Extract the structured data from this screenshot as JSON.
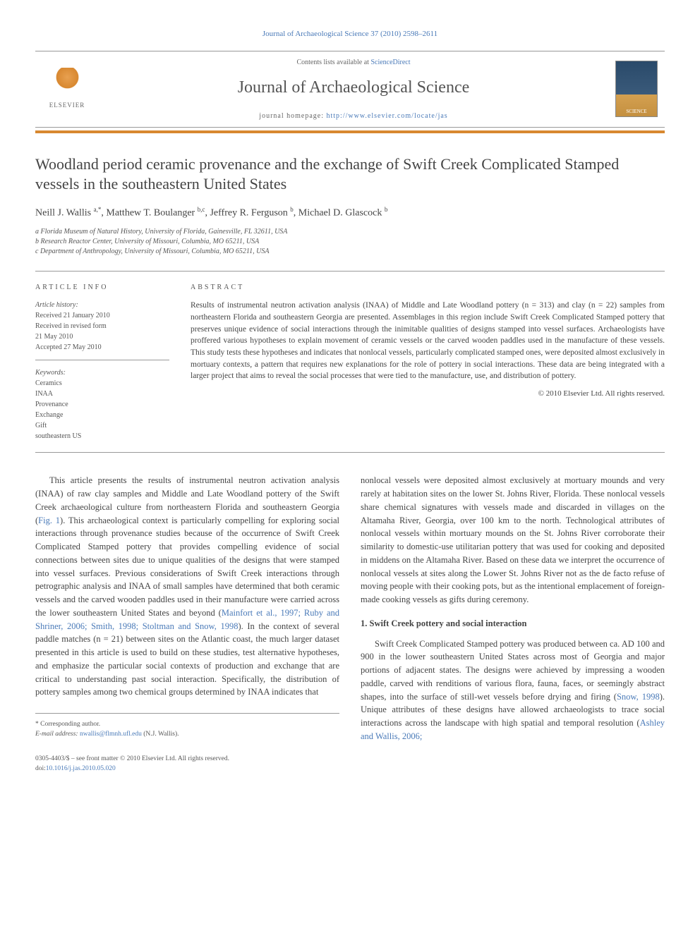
{
  "journal": {
    "citation": "Journal of Archaeological Science 37 (2010) 2598–2611",
    "contents_prefix": "Contents lists available at ",
    "contents_link": "ScienceDirect",
    "name": "Journal of Archaeological Science",
    "homepage_prefix": "journal homepage: ",
    "homepage_url": "http://www.elsevier.com/locate/jas",
    "publisher_logo_text": "ELSEVIER"
  },
  "article": {
    "title": "Woodland period ceramic provenance and the exchange of Swift Creek Complicated Stamped vessels in the southeastern United States",
    "authors_html": "Neill J. Wallis <sup>a,*</sup>, Matthew T. Boulanger <sup>b,c</sup>, Jeffrey R. Ferguson <sup>b</sup>, Michael D. Glascock <sup>b</sup>",
    "affiliations": [
      "a Florida Museum of Natural History, University of Florida, Gainesville, FL 32611, USA",
      "b Research Reactor Center, University of Missouri, Columbia, MO 65211, USA",
      "c Department of Anthropology, University of Missouri, Columbia, MO 65211, USA"
    ]
  },
  "info": {
    "heading": "ARTICLE INFO",
    "history_label": "Article history:",
    "received": "Received 21 January 2010",
    "revised": "Received in revised form",
    "revised_date": "21 May 2010",
    "accepted": "Accepted 27 May 2010",
    "keywords_label": "Keywords:",
    "keywords": [
      "Ceramics",
      "INAA",
      "Provenance",
      "Exchange",
      "Gift",
      "southeastern US"
    ]
  },
  "abstract": {
    "heading": "ABSTRACT",
    "text": "Results of instrumental neutron activation analysis (INAA) of Middle and Late Woodland pottery (n = 313) and clay (n = 22) samples from northeastern Florida and southeastern Georgia are presented. Assemblages in this region include Swift Creek Complicated Stamped pottery that preserves unique evidence of social interactions through the inimitable qualities of designs stamped into vessel surfaces. Archaeologists have proffered various hypotheses to explain movement of ceramic vessels or the carved wooden paddles used in the manufacture of these vessels. This study tests these hypotheses and indicates that nonlocal vessels, particularly complicated stamped ones, were deposited almost exclusively in mortuary contexts, a pattern that requires new explanations for the role of pottery in social interactions. These data are being integrated with a larger project that aims to reveal the social processes that were tied to the manufacture, use, and distribution of pottery.",
    "copyright": "© 2010 Elsevier Ltd. All rights reserved."
  },
  "body": {
    "col1_p1": "This article presents the results of instrumental neutron activation analysis (INAA) of raw clay samples and Middle and Late Woodland pottery of the Swift Creek archaeological culture from northeastern Florida and southeastern Georgia (Fig. 1). This archaeological context is particularly compelling for exploring social interactions through provenance studies because of the occurrence of Swift Creek Complicated Stamped pottery that provides compelling evidence of social connections between sites due to unique qualities of the designs that were stamped into vessel surfaces. Previous considerations of Swift Creek interactions through petrographic analysis and INAA of small samples have determined that both ceramic vessels and the carved wooden paddles used in their manufacture were carried across the lower southeastern United States and beyond (Mainfort et al., 1997; Ruby and Shriner, 2006; Smith, 1998; Stoltman and Snow, 1998). In the context of several paddle matches (n = 21) between sites on the Atlantic coast, the much larger dataset presented in this article is used to build on these studies, test alternative hypotheses, and emphasize the particular social contexts of production and exchange that are critical to understanding past social interaction. Specifically, the distribution of pottery samples among two chemical groups determined by INAA indicates that",
    "col2_p1": "nonlocal vessels were deposited almost exclusively at mortuary mounds and very rarely at habitation sites on the lower St. Johns River, Florida. These nonlocal vessels share chemical signatures with vessels made and discarded in villages on the Altamaha River, Georgia, over 100 km to the north. Technological attributes of nonlocal vessels within mortuary mounds on the St. Johns River corroborate their similarity to domestic-use utilitarian pottery that was used for cooking and deposited in middens on the Altamaha River. Based on these data we interpret the occurrence of nonlocal vessels at sites along the Lower St. Johns River not as the de facto refuse of moving people with their cooking pots, but as the intentional emplacement of foreign-made cooking vessels as gifts during ceremony.",
    "section1_heading": "1. Swift Creek pottery and social interaction",
    "col2_p2": "Swift Creek Complicated Stamped pottery was produced between ca. AD 100 and 900 in the lower southeastern United States across most of Georgia and major portions of adjacent states. The designs were achieved by impressing a wooden paddle, carved with renditions of various flora, fauna, faces, or seemingly abstract shapes, into the surface of still-wet vessels before drying and firing (Snow, 1998). Unique attributes of these designs have allowed archaeologists to trace social interactions across the landscape with high spatial and temporal resolution (Ashley and Wallis, 2006;"
  },
  "footer": {
    "corresponding": "* Corresponding author.",
    "email_label": "E-mail address: ",
    "email": "nwallis@flmnh.ufl.edu",
    "email_suffix": " (N.J. Wallis).",
    "front_matter": "0305-4403/$ – see front matter © 2010 Elsevier Ltd. All rights reserved.",
    "doi_prefix": "doi:",
    "doi": "10.1016/j.jas.2010.05.020"
  },
  "colors": {
    "link": "#4a7ab8",
    "accent_bar": "#d88830",
    "text": "#444444",
    "light_text": "#666666",
    "rule": "#999999"
  }
}
